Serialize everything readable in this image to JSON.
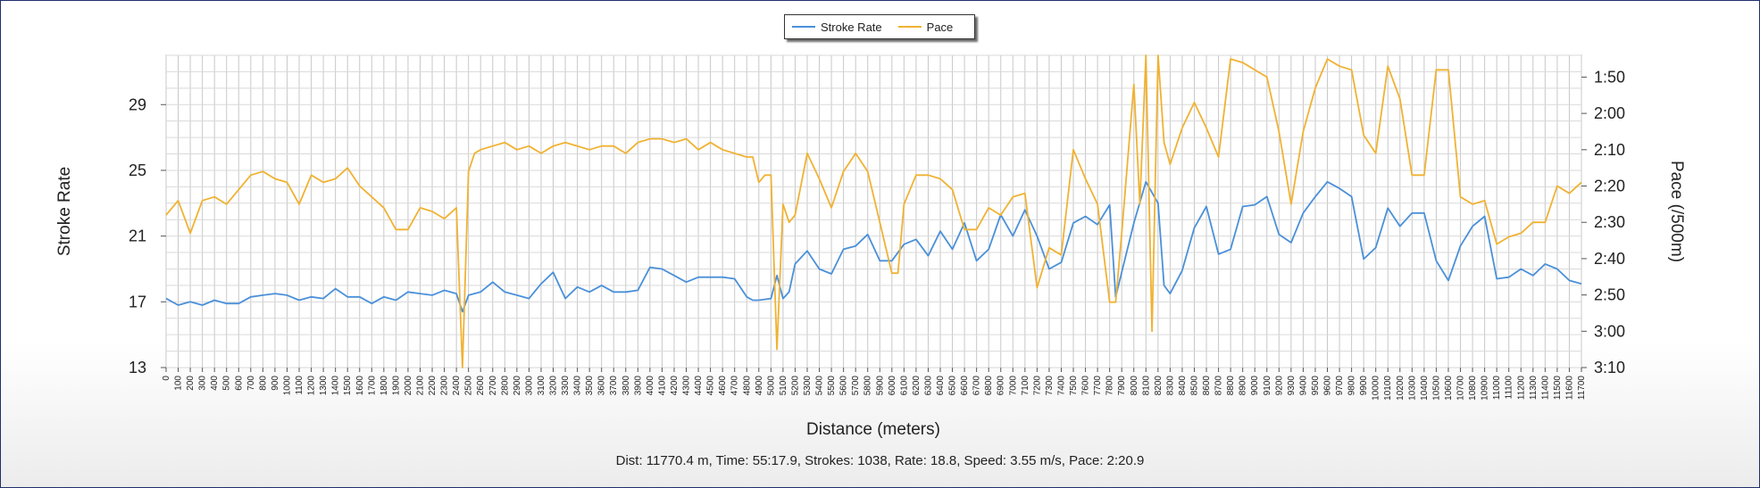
{
  "summary": "Dist: 11770.4 m, Time: 55:17.9, Strokes: 1038, Rate: 18.8, Speed: 3.55 m/s, Pace: 2:20.9",
  "chart_data": {
    "type": "line",
    "xlabel": "Distance (meters)",
    "ylabel": "Stroke Rate",
    "y2label": "Pace (/500m)",
    "legend_position": "top-center",
    "grid": true,
    "xlim": [
      0,
      11700
    ],
    "x_tick_step": 100,
    "y_ticks": [
      13,
      17,
      21,
      25,
      29
    ],
    "ylim": [
      13,
      32
    ],
    "y2_ticks": [
      "1:50",
      "2:00",
      "2:10",
      "2:20",
      "2:30",
      "2:40",
      "2:50",
      "3:00",
      "3:10"
    ],
    "y2lim_seconds": [
      190,
      104
    ],
    "series": [
      {
        "name": "Stroke Rate",
        "color": "#4a90d9",
        "axis": "left",
        "x": [
          0,
          100,
          200,
          300,
          400,
          500,
          600,
          700,
          800,
          900,
          1000,
          1100,
          1200,
          1300,
          1400,
          1500,
          1600,
          1700,
          1800,
          1900,
          2000,
          2100,
          2200,
          2300,
          2400,
          2450,
          2500,
          2600,
          2700,
          2800,
          2900,
          3000,
          3100,
          3200,
          3300,
          3400,
          3500,
          3600,
          3700,
          3800,
          3900,
          4000,
          4100,
          4200,
          4300,
          4400,
          4500,
          4600,
          4700,
          4800,
          4850,
          4900,
          5000,
          5050,
          5100,
          5150,
          5200,
          5300,
          5400,
          5500,
          5600,
          5700,
          5800,
          5900,
          6000,
          6100,
          6200,
          6300,
          6400,
          6500,
          6600,
          6700,
          6800,
          6900,
          7000,
          7100,
          7200,
          7300,
          7400,
          7500,
          7600,
          7700,
          7800,
          7850,
          7900,
          8000,
          8100,
          8200,
          8250,
          8300,
          8400,
          8500,
          8600,
          8700,
          8800,
          8900,
          9000,
          9100,
          9200,
          9300,
          9400,
          9500,
          9600,
          9700,
          9800,
          9900,
          10000,
          10100,
          10200,
          10300,
          10400,
          10500,
          10600,
          10700,
          10800,
          10900,
          11000,
          11100,
          11200,
          11300,
          11400,
          11500,
          11600,
          11700
        ],
        "values": [
          17.2,
          16.8,
          17.0,
          16.8,
          17.1,
          16.9,
          16.9,
          17.3,
          17.4,
          17.5,
          17.4,
          17.1,
          17.3,
          17.2,
          17.8,
          17.3,
          17.3,
          16.9,
          17.3,
          17.1,
          17.6,
          17.5,
          17.4,
          17.7,
          17.5,
          16.4,
          17.4,
          17.6,
          18.2,
          17.6,
          17.4,
          17.2,
          18.1,
          18.8,
          17.2,
          17.9,
          17.6,
          18.0,
          17.6,
          17.6,
          17.7,
          19.1,
          19.0,
          18.6,
          18.2,
          18.5,
          18.5,
          18.5,
          18.4,
          17.3,
          17.1,
          17.1,
          17.2,
          18.6,
          17.2,
          17.6,
          19.3,
          20.1,
          19.0,
          18.7,
          20.2,
          20.4,
          21.1,
          19.5,
          19.5,
          20.5,
          20.8,
          19.8,
          21.3,
          20.2,
          21.8,
          19.5,
          20.2,
          22.3,
          21.0,
          22.6,
          21.0,
          19.0,
          19.4,
          21.8,
          22.2,
          21.7,
          22.9,
          17.3,
          18.8,
          21.8,
          24.3,
          23.0,
          18.0,
          17.5,
          18.9,
          21.5,
          22.8,
          19.9,
          20.2,
          22.8,
          22.9,
          23.4,
          21.1,
          20.6,
          22.4,
          23.4,
          24.3,
          23.9,
          23.4,
          19.6,
          20.3,
          22.7,
          21.6,
          22.4,
          22.4,
          19.5,
          18.3,
          20.4,
          21.6,
          22.2,
          18.4,
          18.5,
          19.0,
          18.6,
          19.3,
          19.0,
          18.3,
          18.1
        ]
      },
      {
        "name": "Pace",
        "color": "#f0b233",
        "axis": "right",
        "x": [
          0,
          100,
          200,
          300,
          400,
          500,
          600,
          700,
          800,
          900,
          1000,
          1100,
          1200,
          1300,
          1400,
          1500,
          1600,
          1700,
          1800,
          1900,
          2000,
          2100,
          2200,
          2300,
          2400,
          2450,
          2500,
          2550,
          2600,
          2700,
          2800,
          2900,
          3000,
          3100,
          3200,
          3300,
          3400,
          3500,
          3600,
          3700,
          3800,
          3900,
          4000,
          4100,
          4200,
          4300,
          4400,
          4500,
          4600,
          4700,
          4800,
          4850,
          4900,
          4950,
          5000,
          5050,
          5100,
          5150,
          5200,
          5300,
          5400,
          5500,
          5600,
          5700,
          5800,
          5900,
          6000,
          6050,
          6100,
          6200,
          6300,
          6400,
          6500,
          6600,
          6700,
          6800,
          6900,
          7000,
          7100,
          7200,
          7300,
          7400,
          7500,
          7600,
          7700,
          7800,
          7850,
          7900,
          8000,
          8050,
          8100,
          8150,
          8200,
          8250,
          8300,
          8400,
          8500,
          8600,
          8700,
          8800,
          8900,
          9000,
          9100,
          9200,
          9300,
          9400,
          9500,
          9600,
          9700,
          9800,
          9900,
          10000,
          10100,
          10200,
          10300,
          10400,
          10500,
          10600,
          10700,
          10800,
          10900,
          11000,
          11100,
          11200,
          11300,
          11400,
          11500,
          11600,
          11700
        ],
        "values": [
          148,
          144,
          153,
          144,
          143,
          145,
          141,
          137,
          136,
          138,
          139,
          145,
          137,
          139,
          138,
          135,
          140,
          143,
          146,
          152,
          152,
          146,
          147,
          149,
          146,
          190,
          136,
          131,
          130,
          129,
          128,
          130,
          129,
          131,
          129,
          128,
          129,
          130,
          129,
          129,
          131,
          128,
          127,
          127,
          128,
          127,
          130,
          128,
          130,
          131,
          132,
          132,
          139,
          137,
          137,
          185,
          145,
          150,
          148,
          131,
          138,
          146,
          136,
          131,
          136,
          150,
          164,
          164,
          145,
          137,
          137,
          138,
          141,
          152,
          152,
          146,
          148,
          143,
          142,
          168,
          157,
          159,
          130,
          138,
          145,
          172,
          172,
          153,
          112,
          145,
          104,
          180,
          104,
          128,
          134,
          124,
          117,
          124,
          132,
          105,
          106,
          108,
          110,
          125,
          145,
          125,
          113,
          105,
          107,
          108,
          126,
          131,
          107,
          116,
          137,
          137,
          108,
          108,
          143,
          145,
          144,
          156,
          154,
          153,
          150,
          150,
          140,
          142,
          139
        ]
      }
    ]
  }
}
